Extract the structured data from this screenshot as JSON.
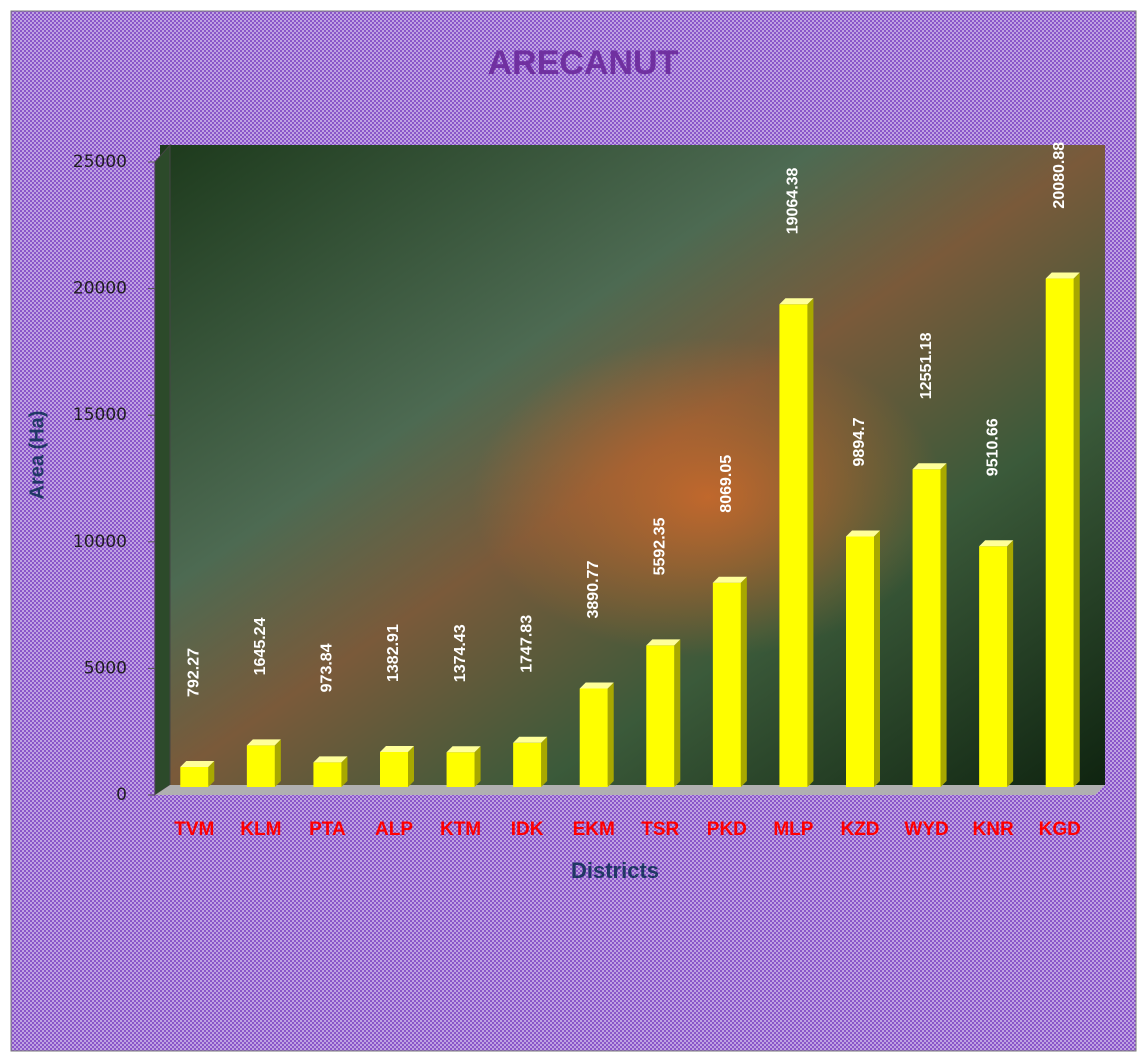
{
  "chart_data": {
    "type": "bar",
    "title": "ARECANUT",
    "x_label": "Districts",
    "y_label": "Area (Ha)",
    "categories": [
      "TVM",
      "KLM",
      "PTA",
      "ALP",
      "KTM",
      "IDK",
      "EKM",
      "TSR",
      "PKD",
      "MLP",
      "KZD",
      "WYD",
      "KNR",
      "KGD"
    ],
    "values": [
      792.27,
      1645.24,
      973.84,
      1382.91,
      1374.43,
      1747.83,
      3890.77,
      5592.35,
      8069.05,
      19064.38,
      9894.7,
      12551.18,
      9510.66,
      20080.88
    ],
    "color": "#ffff00",
    "ylim": [
      0,
      25000
    ],
    "yticks": [
      0,
      5000,
      10000,
      15000,
      20000,
      25000
    ]
  }
}
